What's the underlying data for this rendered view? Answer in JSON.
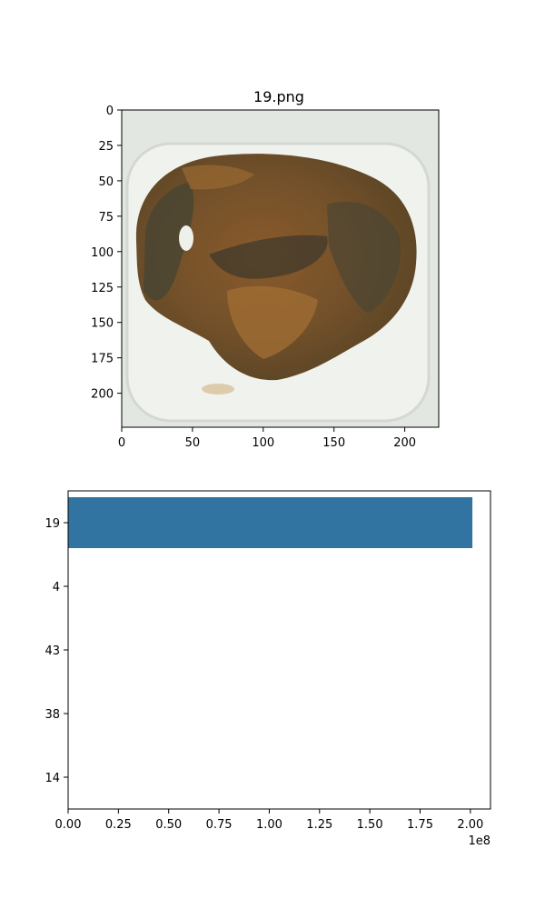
{
  "chart_data": [
    {
      "type": "image",
      "title": "19.png",
      "xlim": [
        0,
        224
      ],
      "ylim": [
        224,
        0
      ],
      "x_ticks": [
        0,
        50,
        100,
        150,
        200
      ],
      "y_ticks": [
        0,
        25,
        50,
        75,
        100,
        125,
        150,
        175,
        200
      ],
      "image_description_colors": {
        "background": "#e6e9e4",
        "tray": "#f1f3ef",
        "food_dark": "#4f3a1f",
        "food_mid": "#7d5427",
        "food_light": "#9c6b2f",
        "food_shadow": "#3c3a2d"
      }
    },
    {
      "type": "bar",
      "orientation": "horizontal",
      "categories": [
        "19",
        "4",
        "43",
        "38",
        "14"
      ],
      "values": [
        201000000,
        0,
        0,
        0,
        0
      ],
      "xlim": [
        0,
        210000000
      ],
      "x_ticks": [
        0,
        25000000,
        50000000,
        75000000,
        100000000,
        125000000,
        150000000,
        175000000,
        200000000
      ],
      "x_tick_labels": [
        "0.00",
        "0.25",
        "0.50",
        "0.75",
        "1.00",
        "1.25",
        "1.50",
        "1.75",
        "2.00"
      ],
      "x_offset_label": "1e8",
      "bar_color": "#3274a1"
    }
  ]
}
